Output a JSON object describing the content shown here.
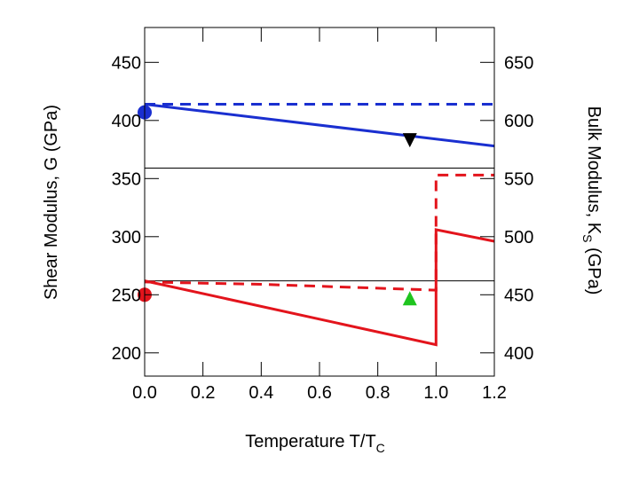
{
  "chart_data": {
    "type": "line",
    "xlabel_main": "Temperature T/T",
    "xlabel_sub": "C",
    "ylabel_left": "Shear Modulus, G (GPa)",
    "ylabel_right_pre": "Bulk Modulus, K",
    "ylabel_right_sub": "S",
    "ylabel_right_post": " (GPa)",
    "xlim": [
      0.0,
      1.2
    ],
    "ylim_left": [
      180,
      480
    ],
    "ylim_right": [
      380,
      680
    ],
    "x_ticks": [
      "0.0",
      "0.2",
      "0.4",
      "0.6",
      "0.8",
      "1.0",
      "1.2"
    ],
    "x_tick_values": [
      0.0,
      0.2,
      0.4,
      0.6,
      0.8,
      1.0,
      1.2
    ],
    "y_left_ticks": [
      200,
      250,
      300,
      350,
      400,
      450
    ],
    "y_right_ticks": [
      400,
      450,
      500,
      550,
      600,
      650
    ],
    "hlines_left": [
      359,
      262
    ],
    "series": [
      {
        "axis": "right",
        "color": "#1a2fd0",
        "style": "solid",
        "x": [
          0.0,
          1.2
        ],
        "y": [
          614,
          578
        ]
      },
      {
        "axis": "right",
        "color": "#1a2fd0",
        "style": "dashed",
        "x": [
          0.0,
          1.2
        ],
        "y": [
          614,
          614
        ]
      },
      {
        "axis": "left",
        "color": "#e3141c",
        "style": "solid",
        "x": [
          0.0,
          1.0,
          1.0,
          1.2
        ],
        "y": [
          262,
          207,
          306,
          296
        ]
      },
      {
        "axis": "left",
        "color": "#e3141c",
        "style": "dashed",
        "x": [
          0.0,
          0.4,
          1.0,
          1.0,
          1.2
        ],
        "y": [
          261,
          259,
          254,
          353,
          353
        ]
      }
    ],
    "markers": [
      {
        "shape": "circle",
        "color": "#1a2fd0",
        "axis": "left",
        "x": 0.0,
        "y": 407
      },
      {
        "shape": "triangle-down",
        "color": "#000000",
        "axis": "right",
        "x": 0.91,
        "y": 583
      },
      {
        "shape": "circle",
        "color": "#e3141c",
        "axis": "left",
        "x": 0.0,
        "y": 250
      },
      {
        "shape": "triangle-up",
        "color": "#1fc41f",
        "axis": "right",
        "x": 0.91,
        "y": 447
      }
    ]
  }
}
